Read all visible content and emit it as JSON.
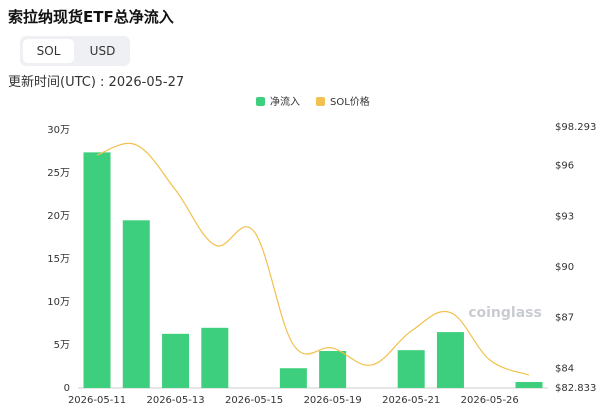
{
  "title": "索拉纳现货ETF总净流入",
  "toggle": [
    "SOL",
    "USD"
  ],
  "update_time": "更新时间(UTC) : 2026-05-27",
  "watermark": "coinglass",
  "chart_data": {
    "type": "bar",
    "categories": [
      "2026-05-11",
      null,
      "2026-05-13",
      null,
      "2026-05-15",
      null,
      "2026-05-19",
      null,
      "2026-05-21",
      null,
      "2026-05-26",
      null
    ],
    "series": [
      {
        "name": "净流入",
        "color": "#3ecf7e",
        "type": "bar",
        "values": [
          274000,
          195000,
          63000,
          70000,
          0,
          23000,
          43000,
          0,
          44000,
          65000,
          0,
          7000
        ]
      },
      {
        "name": "SOL价格",
        "color": "#f2c150",
        "type": "line",
        "axis": "y2",
        "values": [
          96.63,
          97.23,
          94.56,
          91.3,
          92.1,
          85.4,
          85.2,
          84.2,
          86.2,
          87.3,
          84.5,
          83.6
        ]
      }
    ],
    "ylim": [
      0,
      300000
    ],
    "yticks": [
      0,
      {
        "value": 50000,
        "label": "5万"
      },
      {
        "value": 100000,
        "label": "10万"
      },
      {
        "value": 150000,
        "label": "15万"
      },
      {
        "value": 200000,
        "label": "20万"
      },
      {
        "value": 250000,
        "label": "25万"
      },
      {
        "value": 300000,
        "label": "30万"
      }
    ],
    "y2lim": [
      82.833,
      98.293
    ],
    "y2ticks": [
      {
        "value": 82.833,
        "label": "$82.833"
      },
      {
        "value": 84,
        "label": "$84"
      },
      {
        "value": 87,
        "label": "$87"
      },
      {
        "value": 90,
        "label": "$90"
      },
      {
        "value": 93,
        "label": "$93"
      },
      {
        "value": 96,
        "label": "$96"
      },
      {
        "value": 98.293,
        "label": "$98.293"
      }
    ],
    "grid": false,
    "legend": "top"
  }
}
